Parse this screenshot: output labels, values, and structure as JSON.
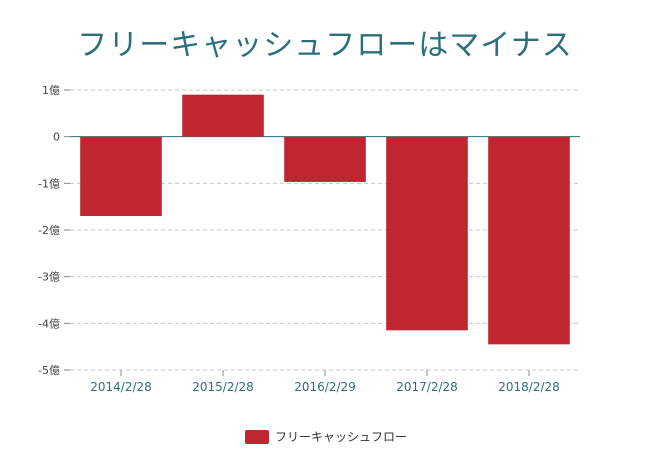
{
  "chart_data": {
    "type": "bar",
    "title": "フリーキャッシュフローはマイナス",
    "categories": [
      "2014/2/28",
      "2015/2/28",
      "2016/2/29",
      "2017/2/28",
      "2018/2/28"
    ],
    "series": [
      {
        "name": "フリーキャッシュフロー",
        "values": [
          -1.7,
          0.9,
          -0.97,
          -4.15,
          -4.45
        ],
        "color": "#c0262f"
      }
    ],
    "yticks": [
      {
        "value": 1,
        "label": "1億"
      },
      {
        "value": 0,
        "label": "0"
      },
      {
        "value": -1,
        "label": "-1億"
      },
      {
        "value": -2,
        "label": "-2億"
      },
      {
        "value": -3,
        "label": "-3億"
      },
      {
        "value": -4,
        "label": "-4億"
      },
      {
        "value": -5,
        "label": "-5億"
      }
    ],
    "ylim": [
      -5,
      1
    ],
    "grid": true,
    "legend_position": "bottom",
    "xlabel": "",
    "ylabel": ""
  }
}
